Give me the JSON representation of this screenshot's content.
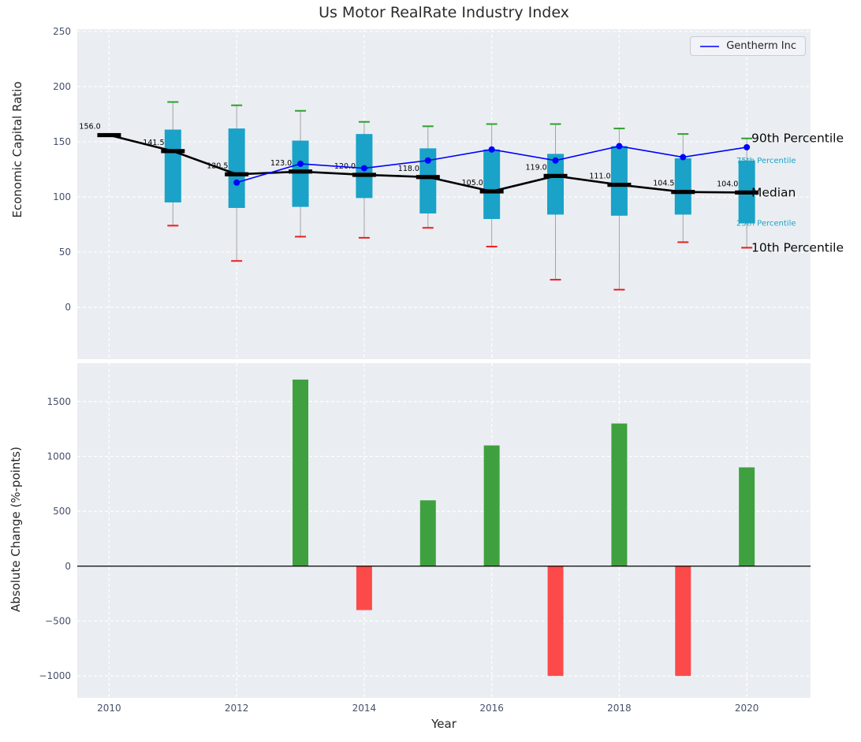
{
  "colors": {
    "figure_background": "#ffffff",
    "plot_background": "#eaeef2",
    "grid": "#ffffff",
    "tick_label": "#47506b",
    "text": "#262626",
    "box": "#1aa2c8",
    "median": "#000000",
    "whisker": "#a3a3a3",
    "cap_high": "#2ca02c",
    "cap_low": "#ed1c1c",
    "company_line": "#0000ff",
    "bar_positive": "#3fa03f",
    "bar_negative": "#fc4a4a",
    "annotation_large": "#0a0a0a",
    "annotation_small": "#1aa2c8"
  },
  "chart_data": [
    {
      "type": "boxplot+line",
      "title": "Us Motor RealRate Industry Index",
      "ylabel": "Economic Capital Ratio",
      "legend": {
        "label": "Gentherm Inc",
        "position": "upper right"
      },
      "x": [
        2010,
        2011,
        2012,
        2013,
        2014,
        2015,
        2016,
        2017,
        2018,
        2019,
        2020
      ],
      "xticks": [
        2010,
        2012,
        2014,
        2016,
        2018,
        2020
      ],
      "yticks": [
        0,
        50,
        100,
        150,
        200,
        250
      ],
      "xlim": [
        2009.5,
        2021.0
      ],
      "ylim": [
        -47,
        252
      ],
      "grid": true,
      "series": {
        "median": [
          156.0,
          141.5,
          120.5,
          123.0,
          120.0,
          118.0,
          105.0,
          119.0,
          111.0,
          104.5,
          104.0
        ],
        "q75": [
          null,
          161,
          162,
          151,
          157,
          144,
          143,
          139,
          146,
          135,
          133
        ],
        "q25": [
          null,
          95,
          90,
          91,
          99,
          85,
          80,
          84,
          83,
          84,
          76
        ],
        "p90": [
          null,
          186,
          183,
          178,
          168,
          164,
          166,
          166,
          162,
          157,
          153
        ],
        "p10": [
          null,
          74,
          42,
          64,
          63,
          72,
          55,
          25,
          16,
          59,
          54
        ],
        "gentherm": [
          null,
          null,
          113,
          130,
          126,
          133,
          143,
          133,
          146,
          136,
          145
        ]
      },
      "median_labels": [
        "156.0",
        "141.5",
        "120.5",
        "123.0",
        "120.0",
        "118.0",
        "105.0",
        "119.0",
        "111.0",
        "104.5",
        "104.0"
      ],
      "annotations": [
        {
          "text": "90th Percentile",
          "series": "p90",
          "size": "large"
        },
        {
          "text": "75th Percentile",
          "series": "q75",
          "size": "small"
        },
        {
          "text": "Median",
          "series": "median",
          "size": "large"
        },
        {
          "text": "25th Percentile",
          "series": "q25",
          "size": "small"
        },
        {
          "text": "10th Percentile",
          "series": "p10",
          "size": "large"
        }
      ]
    },
    {
      "type": "bar",
      "ylabel": "Absolute Change (%-points)",
      "xlabel": "Year",
      "x": [
        2010,
        2011,
        2012,
        2013,
        2014,
        2015,
        2016,
        2017,
        2018,
        2019,
        2020
      ],
      "xticks": [
        2010,
        2012,
        2014,
        2016,
        2018,
        2020
      ],
      "yticks": [
        -1000,
        -500,
        0,
        500,
        1000,
        1500
      ],
      "ylim": [
        -1200,
        1850
      ],
      "values": [
        null,
        null,
        null,
        1700,
        -400,
        600,
        1100,
        -1000,
        1300,
        -1000,
        900
      ]
    }
  ]
}
